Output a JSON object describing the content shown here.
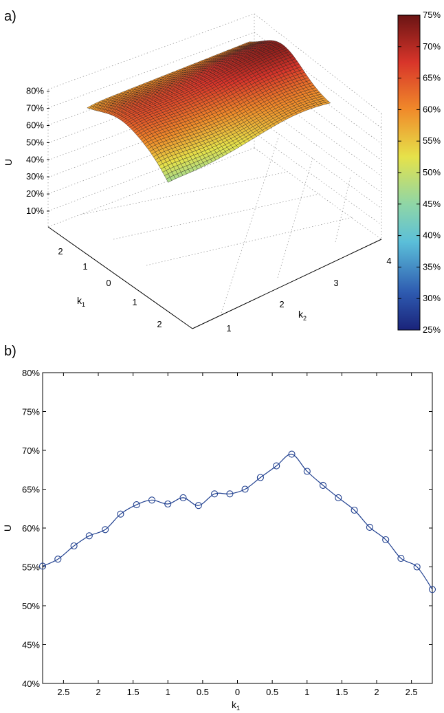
{
  "panels": {
    "a": "a)",
    "b": "b)"
  },
  "chart_data": [
    {
      "type": "surface",
      "zlabel": "U",
      "xlabel": "k",
      "xlabel_sub": "2",
      "ylabel": "k",
      "ylabel_sub": "1",
      "z_ticks": [
        "10%",
        "20%",
        "30%",
        "40%",
        "50%",
        "60%",
        "70%",
        "80%"
      ],
      "x_ticks": [
        "1",
        "2",
        "3",
        "4"
      ],
      "y_ticks": [
        "2",
        "1",
        "0",
        "1",
        "2"
      ],
      "colorbar": {
        "range": [
          25,
          75
        ],
        "ticks": [
          "25%",
          "30%",
          "35%",
          "40%",
          "45%",
          "50%",
          "55%",
          "60%",
          "65%",
          "70%",
          "75%"
        ],
        "colormap": "jet"
      }
    },
    {
      "type": "line",
      "xlabel": "k",
      "xlabel_sub": "1",
      "ylabel": "U",
      "ylim": [
        40,
        80
      ],
      "y_ticks": [
        "40%",
        "45%",
        "50%",
        "55%",
        "60%",
        "65%",
        "70%",
        "75%",
        "80%"
      ],
      "x_ticks": [
        "2.5",
        "2",
        "1.5",
        "1",
        "0.5",
        "0",
        "0.5",
        "1",
        "1.5",
        "2",
        "2.5"
      ],
      "x_range": [
        -2.8,
        2.8
      ],
      "x": [
        -2.8,
        -2.58,
        -2.35,
        -2.13,
        -1.9,
        -1.68,
        -1.45,
        -1.23,
        -1.0,
        -0.78,
        -0.56,
        -0.33,
        -0.11,
        0.11,
        0.33,
        0.56,
        0.78,
        1.0,
        1.23,
        1.45,
        1.68,
        1.9,
        2.13,
        2.35,
        2.58,
        2.8
      ],
      "values": [
        55.1,
        56.0,
        57.7,
        59.0,
        59.8,
        61.8,
        63.0,
        63.6,
        63.1,
        63.9,
        62.9,
        64.4,
        64.4,
        65.0,
        66.5,
        68.0,
        69.5,
        67.3,
        65.5,
        63.9,
        62.3,
        60.1,
        58.5,
        56.1,
        55.0,
        52.1
      ],
      "line_color": "#1f3f8f",
      "marker": "circle"
    }
  ]
}
